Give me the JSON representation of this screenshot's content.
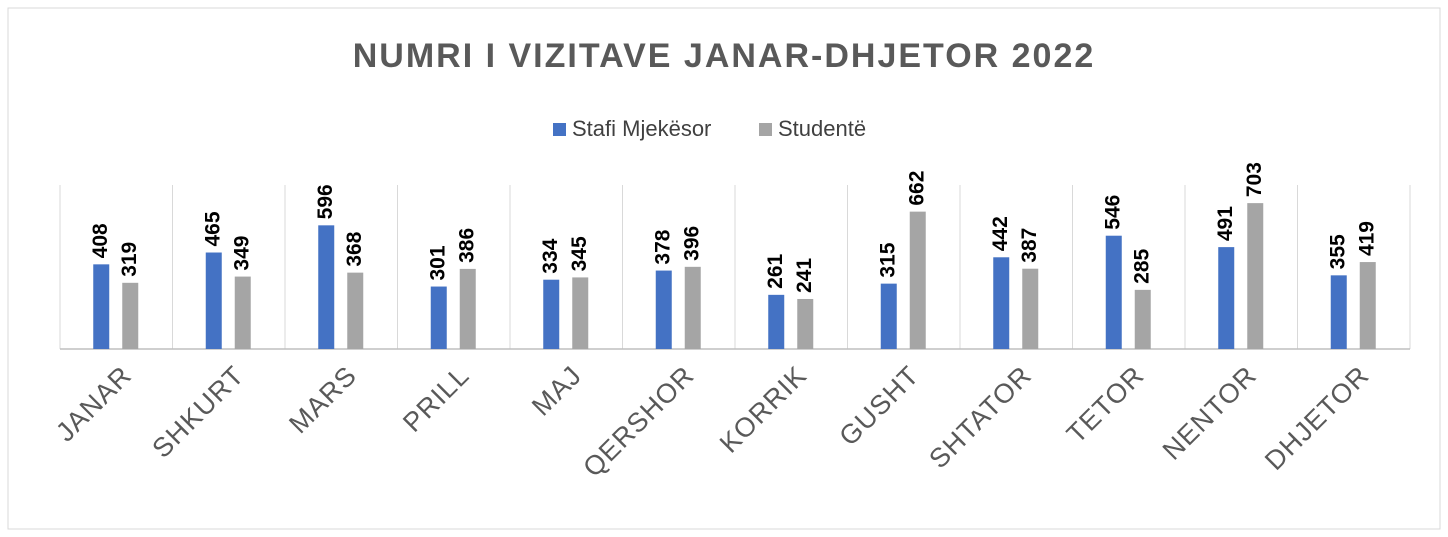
{
  "chart_data": {
    "type": "bar",
    "title": "NUMRI I VIZITAVE JANAR-DHJETOR 2022",
    "categories": [
      "JANAR",
      "SHKURT",
      "MARS",
      "PRILL",
      "MAJ",
      "QERSHOR",
      "KORRIK",
      "GUSHT",
      "SHTATOR",
      "TETOR",
      "NENTOR",
      "DHJETOR"
    ],
    "series": [
      {
        "name": "Stafi Mjekësor",
        "color": "#4472c4",
        "values": [
          408,
          465,
          596,
          301,
          334,
          378,
          261,
          315,
          442,
          546,
          491,
          355
        ]
      },
      {
        "name": "Studentë",
        "color": "#a5a5a5",
        "values": [
          319,
          349,
          368,
          386,
          345,
          396,
          241,
          662,
          387,
          285,
          703,
          419
        ]
      }
    ],
    "ylim": [
      0,
      800
    ],
    "legend": "top"
  }
}
